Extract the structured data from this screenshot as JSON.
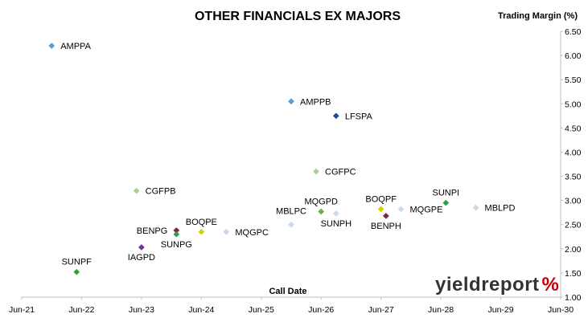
{
  "chart_data": {
    "type": "scatter",
    "title": "OTHER FINANCIALS EX MAJORS",
    "ylabel": "Trading Margin (%)",
    "xlabel": "Call Date",
    "x_ticks": [
      "Jun-21",
      "Jun-22",
      "Jun-23",
      "Jun-24",
      "Jun-25",
      "Jun-26",
      "Jun-27",
      "Jun-28",
      "Jun-29",
      "Jun-30"
    ],
    "y_ticks": [
      "1.00",
      "1.50",
      "2.00",
      "2.50",
      "3.00",
      "3.50",
      "4.00",
      "4.50",
      "5.00",
      "5.50",
      "6.00",
      "6.50"
    ],
    "ylim": [
      1.0,
      6.5
    ],
    "xlim": [
      "2021-06",
      "2030-06"
    ],
    "y_axis_side": "right",
    "grid": false,
    "legend": "none",
    "points": [
      {
        "label": "AMPPA",
        "x": "2021-12",
        "y": 6.2,
        "color": "#5b9bd5",
        "label_pos": "right"
      },
      {
        "label": "AMPPB",
        "x": "2025-12",
        "y": 5.05,
        "color": "#5b9bd5",
        "label_pos": "right"
      },
      {
        "label": "LFSPA",
        "x": "2026-09",
        "y": 4.75,
        "color": "#1f4e8c",
        "label_pos": "right"
      },
      {
        "label": "CGFPC",
        "x": "2026-05",
        "y": 3.6,
        "color": "#a9d18e",
        "label_pos": "right"
      },
      {
        "label": "CGFPB",
        "x": "2023-05",
        "y": 3.2,
        "color": "#a9d18e",
        "label_pos": "right"
      },
      {
        "label": "MQGPD",
        "x": "2026-06",
        "y": 2.77,
        "color": "#70ad47",
        "label_pos": "above"
      },
      {
        "label": "SUNPH",
        "x": "2026-09",
        "y": 2.73,
        "color": "#c9d9ef",
        "label_pos": "below"
      },
      {
        "label": "MBLPC",
        "x": "2025-12",
        "y": 2.5,
        "color": "#c9d9ef",
        "label_pos": "above-left"
      },
      {
        "label": "BOQPF",
        "x": "2027-06",
        "y": 2.82,
        "color": "#d4d400",
        "label_pos": "above"
      },
      {
        "label": "BENPH",
        "x": "2027-07",
        "y": 2.68,
        "color": "#7b2c3b",
        "label_pos": "below"
      },
      {
        "label": "MQGPE",
        "x": "2027-10",
        "y": 2.82,
        "color": "#c9d9ef",
        "label_pos": "right"
      },
      {
        "label": "SUNPI",
        "x": "2028-07",
        "y": 2.95,
        "color": "#2ea043",
        "label_pos": "above"
      },
      {
        "label": "MBLPD",
        "x": "2029-01",
        "y": 2.85,
        "color": "#c9d9ef",
        "label_pos": "right"
      },
      {
        "label": "BOQPE",
        "x": "2024-06",
        "y": 2.35,
        "color": "#d4d400",
        "label_pos": "above"
      },
      {
        "label": "BENPG",
        "x": "2024-01",
        "y": 2.38,
        "color": "#7b2c3b",
        "label_pos": "left"
      },
      {
        "label": "SUNPG",
        "x": "2024-01",
        "y": 2.3,
        "color": "#2ea043",
        "label_pos": "below"
      },
      {
        "label": "MQGPC",
        "x": "2024-11",
        "y": 2.35,
        "color": "#c9d9ef",
        "label_pos": "right"
      },
      {
        "label": "IAGPD",
        "x": "2023-06",
        "y": 2.03,
        "color": "#7030a0",
        "label_pos": "below"
      },
      {
        "label": "SUNPF",
        "x": "2022-05",
        "y": 1.52,
        "color": "#2ea043",
        "label_pos": "above"
      }
    ]
  },
  "logo": {
    "text_dark": "yieldreport",
    "text_percent": "%",
    "color_dark": "#333333",
    "color_green": "#2ea043",
    "color_red": "#c00000"
  }
}
